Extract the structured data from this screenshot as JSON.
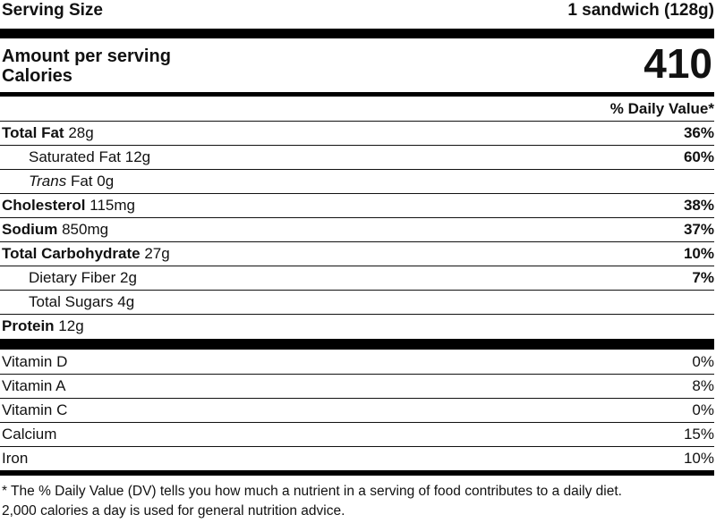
{
  "serving": {
    "label": "Serving Size",
    "value": "1 sandwich (128g)"
  },
  "calories": {
    "amount_label": "Amount per serving",
    "label": "Calories",
    "value": "410"
  },
  "dv_header": "% Daily Value*",
  "nutrients": [
    {
      "name": "Total Fat",
      "amount": "28g",
      "dv": "36%"
    },
    {
      "name": "Saturated Fat",
      "amount": "12g",
      "dv": "60%"
    },
    {
      "name_italic": "Trans",
      "name": "Fat",
      "amount": "0g",
      "dv": ""
    },
    {
      "name": "Cholesterol",
      "amount": "115mg",
      "dv": "38%"
    },
    {
      "name": "Sodium",
      "amount": "850mg",
      "dv": "37%"
    },
    {
      "name": "Total Carbohydrate",
      "amount": "27g",
      "dv": "10%"
    },
    {
      "name": "Dietary Fiber",
      "amount": "2g",
      "dv": "7%"
    },
    {
      "name": "Total Sugars",
      "amount": "4g",
      "dv": ""
    },
    {
      "name": "Protein",
      "amount": "12g",
      "dv": ""
    }
  ],
  "vitamins": [
    {
      "name": "Vitamin D",
      "dv": "0%"
    },
    {
      "name": "Vitamin A",
      "dv": "8%"
    },
    {
      "name": "Vitamin C",
      "dv": "0%"
    },
    {
      "name": "Calcium",
      "dv": "15%"
    },
    {
      "name": "Iron",
      "dv": "10%"
    }
  ],
  "footnote": {
    "line1": "* The % Daily Value (DV) tells you how much a nutrient in a serving of food contributes to a daily diet.",
    "line2": "2,000 calories a day is used for general nutrition advice."
  }
}
